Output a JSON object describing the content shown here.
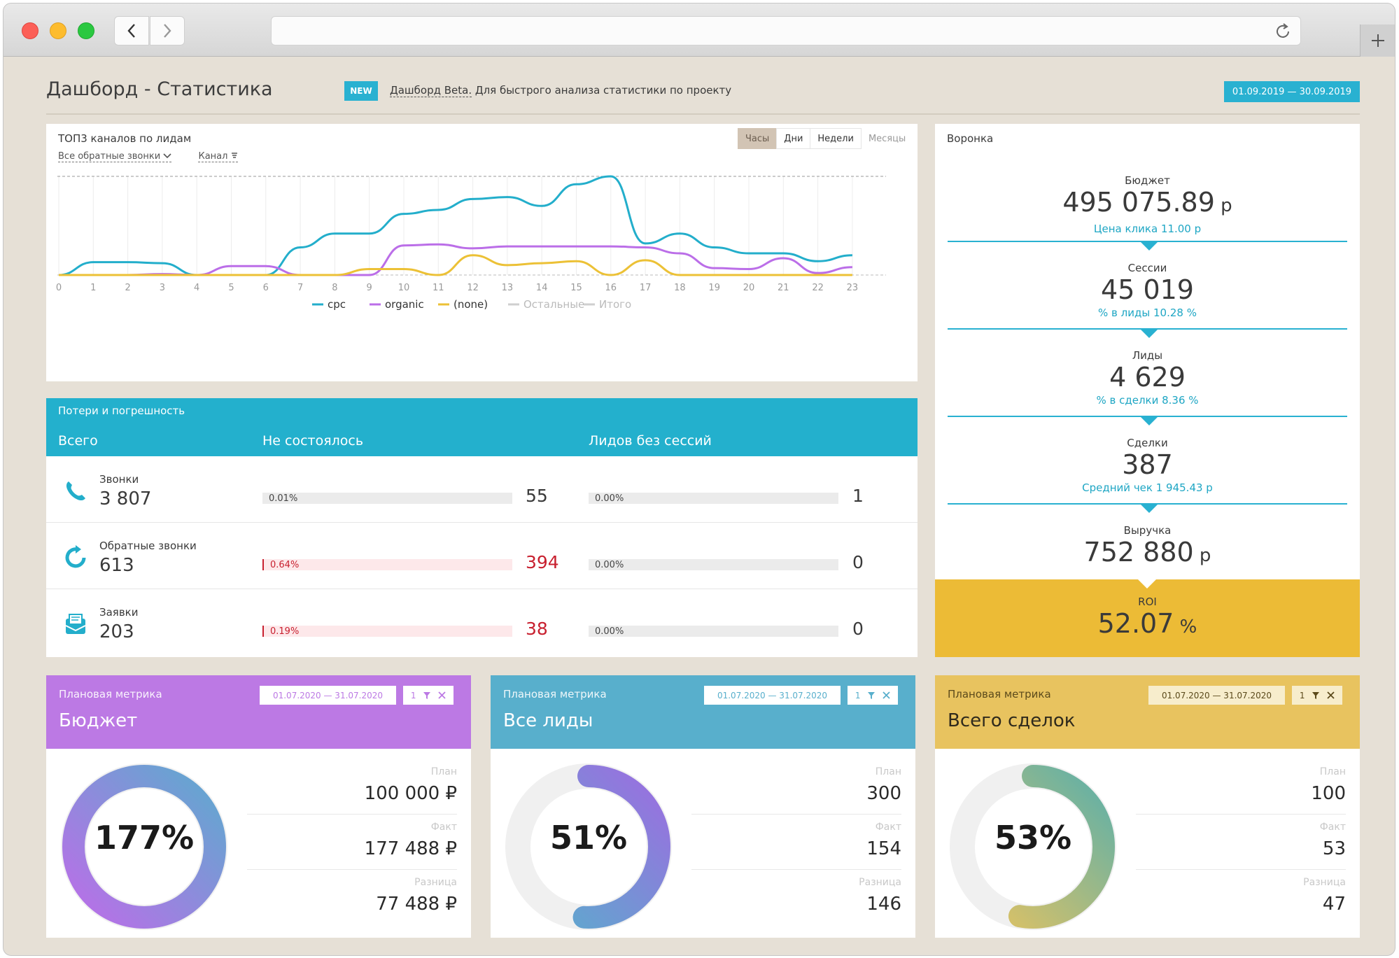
{
  "header": {
    "title": "Дашборд - Статистика",
    "new_badge": "NEW",
    "beta_link": "Дашборд Beta.",
    "beta_text": " Для быстрого анализа статистики по проекту",
    "date_range": "01.09.2019  —  30.09.2019"
  },
  "top_channels": {
    "title": "ТОП3 каналов по лидам",
    "filter_calls": "Все обратные звонки",
    "filter_channel": "Канал",
    "periods": [
      "Часы",
      "Дни",
      "Недели",
      "Месяцы"
    ],
    "active_period": "Часы"
  },
  "chart_data": {
    "type": "line",
    "x": [
      0,
      1,
      2,
      3,
      4,
      5,
      6,
      7,
      8,
      9,
      10,
      11,
      12,
      13,
      14,
      15,
      16,
      17,
      18,
      19,
      20,
      21,
      22,
      23
    ],
    "series": [
      {
        "name": "cpc",
        "color": "#23aecb",
        "values": [
          0,
          13,
          13,
          12,
          0,
          0,
          0,
          28,
          42,
          42,
          62,
          66,
          77,
          79,
          70,
          92,
          100,
          32,
          42,
          28,
          22,
          22,
          14,
          20
        ]
      },
      {
        "name": "organic",
        "color": "#bb6ee8",
        "values": [
          0,
          0,
          0,
          1,
          0,
          9,
          9,
          0,
          0,
          0,
          30,
          31,
          27,
          29,
          29,
          29,
          29,
          28,
          22,
          7,
          6,
          17,
          2,
          8
        ]
      },
      {
        "name": "(none)",
        "color": "#ecc136",
        "values": [
          0,
          0,
          0,
          0,
          0,
          0,
          0,
          0,
          0,
          6,
          6,
          0,
          20,
          10,
          12,
          14,
          0,
          15,
          0,
          0,
          0,
          0,
          0,
          0
        ]
      }
    ],
    "legend": [
      "cpc",
      "organic",
      "(none)",
      "Остальные",
      "Итого"
    ],
    "legend_placement": "bottom",
    "grid": true,
    "ylim": [
      0,
      100
    ]
  },
  "losses": {
    "title": "Потери и погрешность",
    "col_total": "Всего",
    "col_failed": "Не состоялось",
    "col_no_session": "Лидов без сессий",
    "rows": [
      {
        "name": "Звонки",
        "total": "3 807",
        "failed_pct": "0.01%",
        "failed": "55",
        "nosess_pct": "0.00%",
        "nosess": "1"
      },
      {
        "name": "Обратные звонки",
        "total": "613",
        "failed_pct": "0.64%",
        "failed": "394",
        "nosess_pct": "0.00%",
        "nosess": "0"
      },
      {
        "name": "Заявки",
        "total": "203",
        "failed_pct": "0.19%",
        "failed": "38",
        "nosess_pct": "0.00%",
        "nosess": "0"
      }
    ]
  },
  "funnel": {
    "title": "Воронка",
    "stages": [
      {
        "label": "Бюджет",
        "value": "495 075.89",
        "unit": " р",
        "sub": "Цена клика 11.00 р"
      },
      {
        "label": "Сессии",
        "value": "45 019",
        "unit": "",
        "sub": "% в лиды 10.28 %"
      },
      {
        "label": "Лиды",
        "value": "4 629",
        "unit": "",
        "sub": "% в сделки 8.36 %"
      },
      {
        "label": "Сделки",
        "value": "387",
        "unit": "",
        "sub": "Средний чек 1 945.43 р"
      },
      {
        "label": "Выручка",
        "value": "752 880",
        "unit": " р",
        "sub": ""
      }
    ],
    "roi_label": "ROI",
    "roi_value": "52.07",
    "roi_unit": " %"
  },
  "metrics": [
    {
      "title": "Плановая метрика",
      "name": "Бюджет",
      "date": "01.07.2020  —  31.07.2020",
      "count": "1",
      "percent": "177%",
      "progress": 1.77,
      "plan_label": "План",
      "plan": "100 000 ₽",
      "fact_label": "Факт",
      "fact": "177 488 ₽",
      "diff_label": "Разница",
      "diff": "77 488 ₽",
      "color": "#bc79e4"
    },
    {
      "title": "Плановая метрика",
      "name": "Все лиды",
      "date": "01.07.2020  —  31.07.2020",
      "count": "1",
      "percent": "51%",
      "progress": 0.51,
      "plan_label": "План",
      "plan": "300",
      "fact_label": "Факт",
      "fact": "154",
      "diff_label": "Разница",
      "diff": "146",
      "color": "#58afcc"
    },
    {
      "title": "Плановая метрика",
      "name": "Всего сделок",
      "date": "01.07.2020  —  31.07.2020",
      "count": "1",
      "percent": "53%",
      "progress": 0.53,
      "plan_label": "План",
      "plan": "100",
      "fact_label": "Факт",
      "fact": "53",
      "diff_label": "Разница",
      "diff": "47",
      "color": "#e8c35f"
    }
  ]
}
